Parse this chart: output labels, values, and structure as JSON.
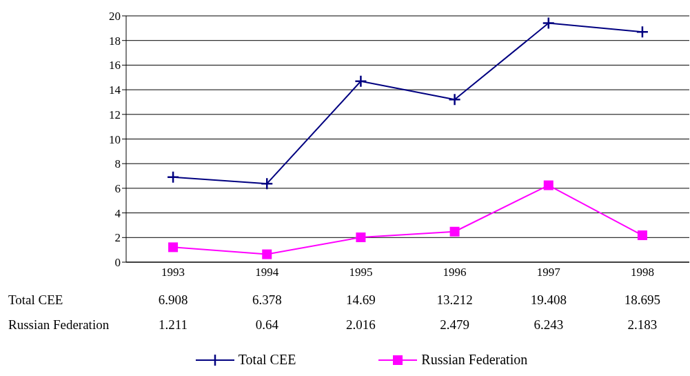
{
  "chart_data": {
    "type": "line",
    "categories": [
      "1993",
      "1994",
      "1995",
      "1996",
      "1997",
      "1998"
    ],
    "series": [
      {
        "name": "Total CEE",
        "color": "#000080",
        "marker": "cross",
        "values": [
          6.908,
          6.378,
          14.69,
          13.212,
          19.408,
          18.695
        ]
      },
      {
        "name": "Russian Federation",
        "color": "#ff00ff",
        "marker": "square",
        "values": [
          1.211,
          0.64,
          2.016,
          2.479,
          6.243,
          2.183
        ]
      }
    ],
    "ylim": [
      0,
      20
    ],
    "yticks": [
      0,
      2,
      4,
      6,
      8,
      10,
      12,
      14,
      16,
      18,
      20
    ],
    "grid": "y",
    "legend": "bottom",
    "data_labels": true
  }
}
